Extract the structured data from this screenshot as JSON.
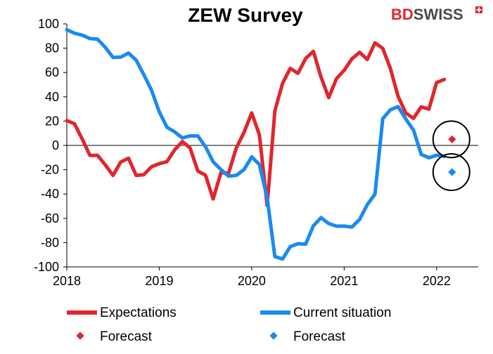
{
  "brand": {
    "part1": "BD",
    "part2": "SWISS",
    "accent": "#e0262d"
  },
  "chart_data": {
    "type": "line",
    "title": "ZEW Survey",
    "xlabel": "",
    "ylabel": "",
    "ylim": [
      -100,
      100
    ],
    "yticks": [
      100,
      80,
      60,
      40,
      20,
      0,
      -20,
      -40,
      -60,
      -80,
      -100
    ],
    "xticks": [
      {
        "label": "2018",
        "value": 2018
      },
      {
        "label": "2019",
        "value": 2019
      },
      {
        "label": "2020",
        "value": 2020
      },
      {
        "label": "2021",
        "value": 2021
      },
      {
        "label": "2022",
        "value": 2022
      }
    ],
    "xlim": [
      2018,
      2022.45
    ],
    "grid": false,
    "legend_position": "bottom",
    "series": [
      {
        "name": "Expectations",
        "color": "#e0262d",
        "x": [
          2018.0,
          2018.083,
          2018.167,
          2018.25,
          2018.333,
          2018.417,
          2018.5,
          2018.583,
          2018.667,
          2018.75,
          2018.833,
          2018.917,
          2019.0,
          2019.083,
          2019.167,
          2019.25,
          2019.333,
          2019.417,
          2019.5,
          2019.583,
          2019.667,
          2019.75,
          2019.833,
          2019.917,
          2020.0,
          2020.083,
          2020.167,
          2020.25,
          2020.333,
          2020.417,
          2020.5,
          2020.583,
          2020.667,
          2020.75,
          2020.833,
          2020.917,
          2021.0,
          2021.083,
          2021.167,
          2021.25,
          2021.333,
          2021.417,
          2021.5,
          2021.583,
          2021.667,
          2021.75,
          2021.833,
          2021.917,
          2022.0,
          2022.083
        ],
        "y": [
          20.4,
          17.8,
          5.1,
          -8.2,
          -8.2,
          -16.1,
          -24.7,
          -13.7,
          -10.6,
          -24.7,
          -24.1,
          -17.5,
          -15.0,
          -13.4,
          -3.6,
          3.1,
          -2.1,
          -21.1,
          -24.5,
          -44.1,
          -22.5,
          -22.8,
          -2.1,
          10.7,
          26.7,
          8.7,
          -49.5,
          28.2,
          51.0,
          63.4,
          59.3,
          71.5,
          77.4,
          56.1,
          39.3,
          55.0,
          61.8,
          71.2,
          76.6,
          70.7,
          84.4,
          79.8,
          63.3,
          40.4,
          26.5,
          22.3,
          31.7,
          29.9,
          51.7,
          54.3
        ]
      },
      {
        "name": "Current situation",
        "color": "#1a8af0",
        "x": [
          2018.0,
          2018.083,
          2018.167,
          2018.25,
          2018.333,
          2018.417,
          2018.5,
          2018.583,
          2018.667,
          2018.75,
          2018.833,
          2018.917,
          2019.0,
          2019.083,
          2019.167,
          2019.25,
          2019.333,
          2019.417,
          2019.5,
          2019.583,
          2019.667,
          2019.75,
          2019.833,
          2019.917,
          2020.0,
          2020.083,
          2020.167,
          2020.25,
          2020.333,
          2020.417,
          2020.5,
          2020.583,
          2020.667,
          2020.75,
          2020.833,
          2020.917,
          2021.0,
          2021.083,
          2021.167,
          2021.25,
          2021.333,
          2021.417,
          2021.5,
          2021.583,
          2021.667,
          2021.75,
          2021.833,
          2021.917,
          2022.0,
          2022.083
        ],
        "y": [
          95.2,
          92.3,
          90.7,
          87.9,
          87.4,
          80.6,
          72.4,
          72.6,
          76.0,
          70.1,
          58.2,
          45.3,
          27.6,
          15.0,
          11.1,
          6.1,
          7.8,
          7.8,
          -1.1,
          -13.5,
          -19.9,
          -25.3,
          -24.7,
          -19.9,
          -9.5,
          -15.7,
          -43.1,
          -91.5,
          -93.5,
          -83.3,
          -80.9,
          -81.3,
          -66.2,
          -59.5,
          -64.3,
          -66.5,
          -66.4,
          -67.2,
          -61.0,
          -48.8,
          -40.1,
          21.9,
          29.3,
          31.9,
          21.6,
          12.5,
          -7.4,
          -10.2,
          -8.1,
          -9.0
        ]
      }
    ],
    "forecasts": [
      {
        "name": "Forecast",
        "series": "Expectations",
        "x": 2022.167,
        "y": 5,
        "color": "#e0262d"
      },
      {
        "name": "Forecast",
        "series": "Current situation",
        "x": 2022.167,
        "y": -22,
        "color": "#1a8af0"
      }
    ]
  }
}
